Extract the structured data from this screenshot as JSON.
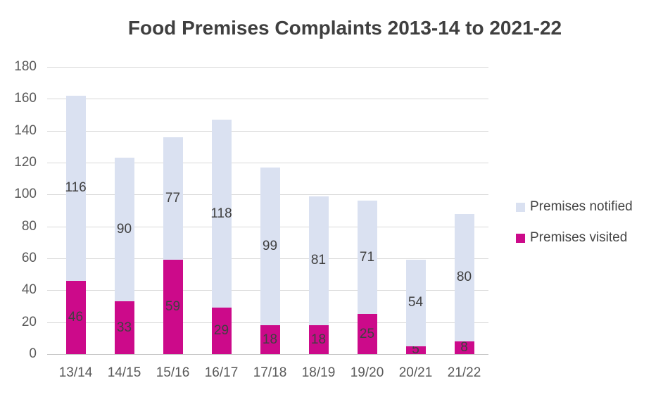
{
  "chart_data": {
    "type": "bar",
    "stacked": true,
    "title": "Food Premises Complaints 2013-14 to 2021-22",
    "categories": [
      "13/14",
      "14/15",
      "15/16",
      "16/17",
      "17/18",
      "18/19",
      "19/20",
      "20/21",
      "21/22"
    ],
    "series": [
      {
        "name": "Premises visited",
        "color": "#cc0a8a",
        "values": [
          46,
          33,
          59,
          29,
          18,
          18,
          25,
          5,
          8
        ]
      },
      {
        "name": "Premises notified",
        "color": "#dae1f1",
        "values": [
          116,
          90,
          77,
          118,
          99,
          81,
          71,
          54,
          80
        ]
      }
    ],
    "totals": [
      162,
      123,
      136,
      147,
      117,
      99,
      96,
      59,
      88
    ],
    "ylim": [
      0,
      180
    ],
    "ytick_step": 20,
    "yticks": [
      0,
      20,
      40,
      60,
      80,
      100,
      120,
      140,
      160,
      180
    ],
    "grid": true,
    "legend_position": "right",
    "legend_order": [
      "Premises notified",
      "Premises visited"
    ],
    "data_labels": "center",
    "label_color": "#404040",
    "axis_text_color": "#595959",
    "gridline_color": "#d9d9d9",
    "title_color": "#3f3f3f",
    "background_color": "#ffffff"
  }
}
